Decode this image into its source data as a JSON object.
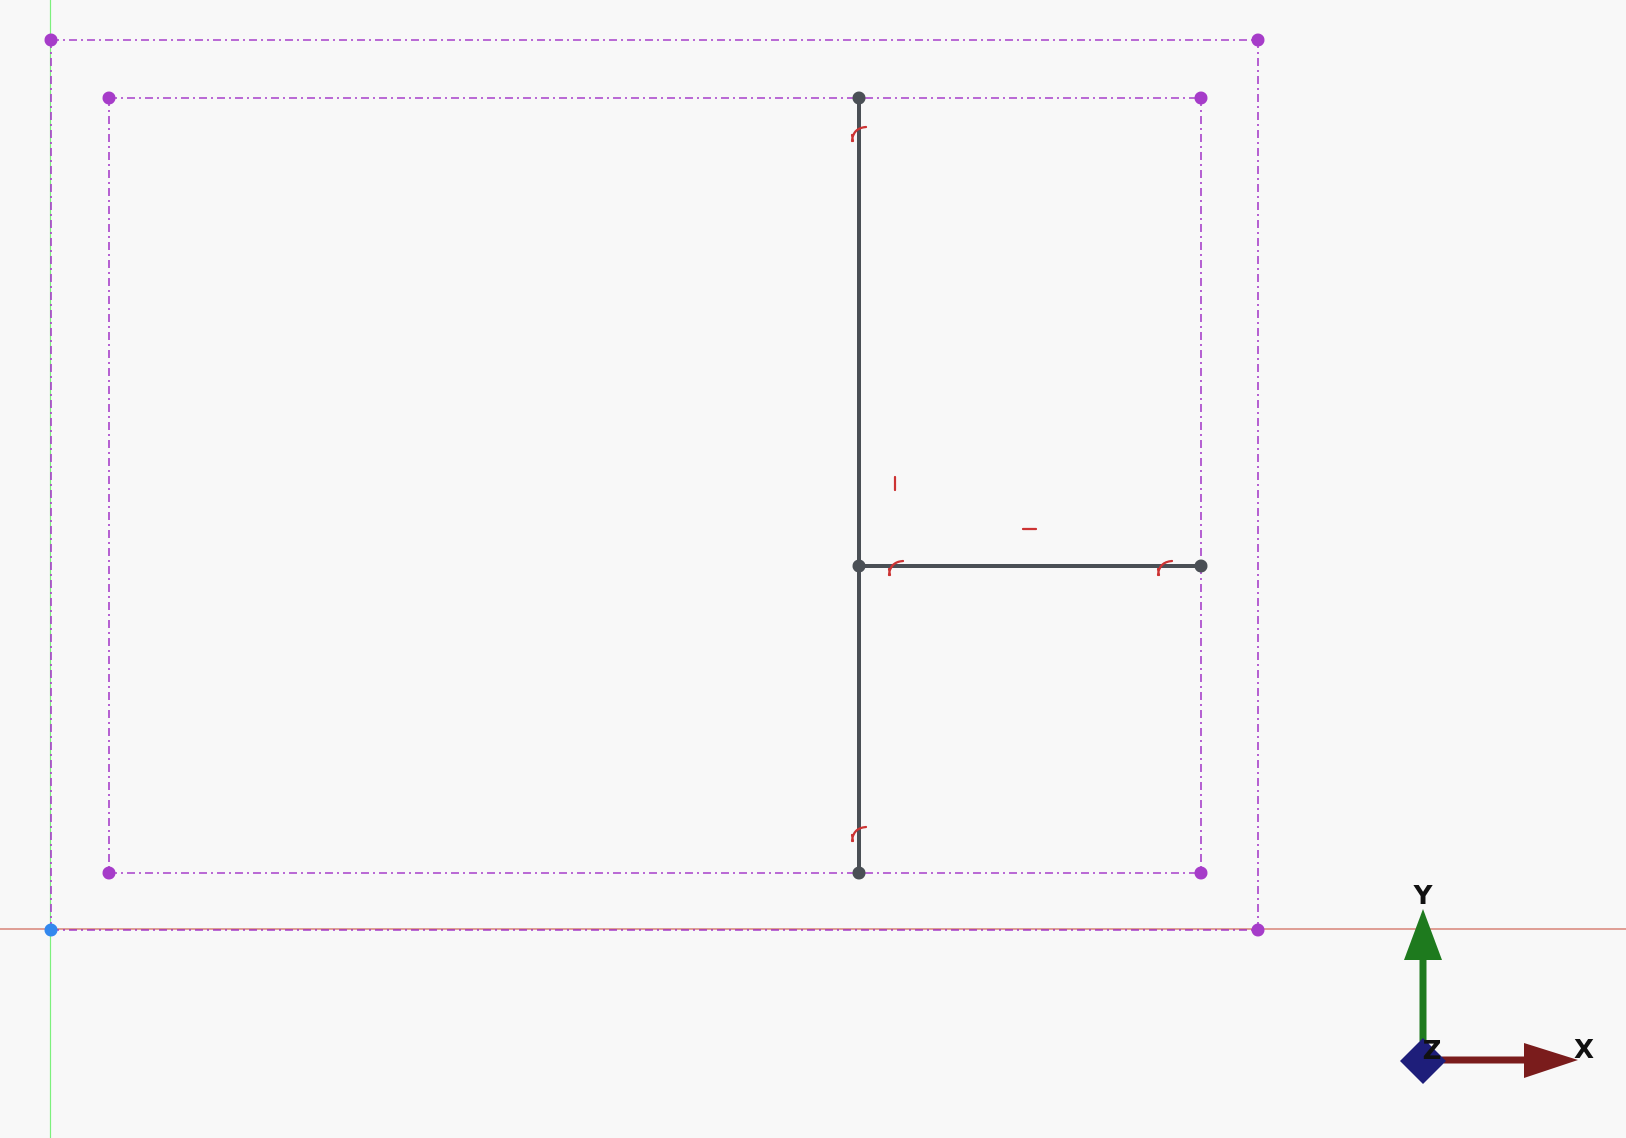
{
  "view": {
    "background": "#f8f8f8"
  },
  "colors": {
    "origin_x_axis": "#d06a5c",
    "origin_y_axis": "#7cf07c",
    "construction": "#a63cc9",
    "geometry": "#4a4f55",
    "constraint": "#cc3333",
    "origin_point": "#3388ee",
    "gizmo_x": "#7a1c1c",
    "gizmo_y": "#1e7a1e",
    "gizmo_z": "#1e1e7a"
  },
  "constraints": [
    {
      "type": "coincident",
      "icon": "coincident-icon"
    },
    {
      "type": "coincident",
      "icon": "coincident-icon"
    },
    {
      "type": "coincident",
      "icon": "coincident-icon"
    },
    {
      "type": "coincident",
      "icon": "coincident-icon"
    },
    {
      "type": "vertical",
      "icon": "vertical-constraint-icon"
    },
    {
      "type": "horizontal",
      "icon": "horizontal-constraint-icon"
    }
  ],
  "gizmo": {
    "x_label": "X",
    "y_label": "Y",
    "z_label": "Z"
  }
}
